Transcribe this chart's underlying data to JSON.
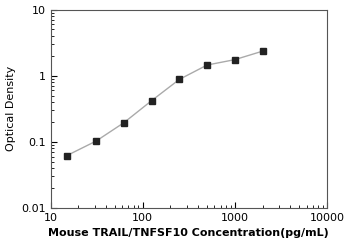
{
  "x_values": [
    15,
    31.25,
    62.5,
    125,
    250,
    500,
    1000,
    2000
  ],
  "y_values": [
    0.062,
    0.103,
    0.195,
    0.42,
    0.88,
    1.45,
    1.75,
    2.35
  ],
  "xlim": [
    10,
    10000
  ],
  "ylim": [
    0.01,
    10
  ],
  "xlabel": "Mouse TRAIL/TNFSF10 Concentration(pg/mL)",
  "ylabel": "Optical Density",
  "xticks": [
    10,
    100,
    1000,
    10000
  ],
  "yticks": [
    0.01,
    0.1,
    1,
    10
  ],
  "line_color": "#aaaaaa",
  "marker_color": "#222222",
  "marker_edge_color": "#222222",
  "marker": "s",
  "marker_size": 5,
  "line_width": 1.0,
  "background_color": "#ffffff",
  "font_size_label": 8,
  "font_size_tick": 8,
  "font_weight_xlabel": "bold"
}
